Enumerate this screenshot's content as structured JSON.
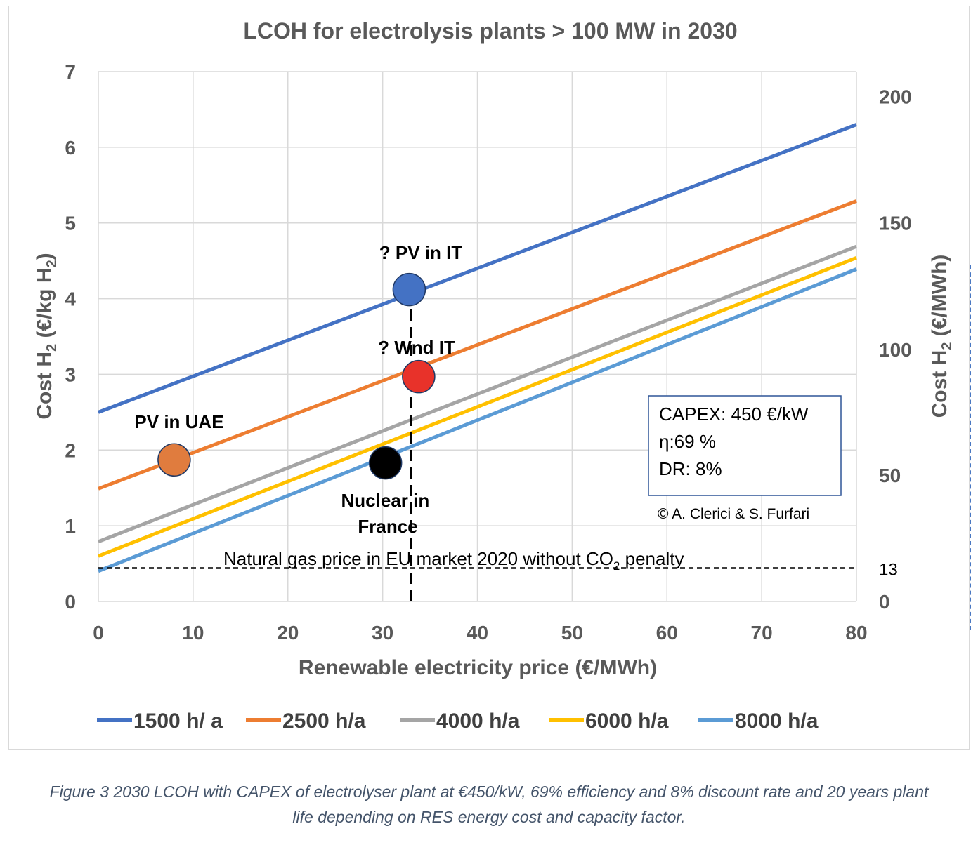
{
  "chart_data": {
    "type": "line",
    "title": "LCOH for electrolysis plants > 100 MW in 2030",
    "xlabel": "Renewable electricity price (€/MWh)",
    "ylabel_main": "Cost H",
    "ylabel_sub": "2",
    "ylabel_mid": " (€/kg H",
    "ylabel_sub2": "2",
    "ylabel_end": ")",
    "y2label_main": "Cost H",
    "y2label_sub": "2",
    "y2label_end": " (€/MWh)",
    "xlim": [
      0,
      80
    ],
    "ylim": [
      0,
      7
    ],
    "x_ticks": [
      0,
      10,
      20,
      30,
      40,
      50,
      60,
      70,
      80
    ],
    "y_ticks": [
      0,
      1,
      2,
      3,
      4,
      5,
      6,
      7
    ],
    "y2_ticks": [
      {
        "label": "0",
        "value_kg": 0
      },
      {
        "label": "13",
        "value_kg": 0.44
      },
      {
        "label": "50",
        "value_kg": 1.67
      },
      {
        "label": "100",
        "value_kg": 3.33
      },
      {
        "label": "150",
        "value_kg": 5.0
      },
      {
        "label": "200",
        "value_kg": 6.67
      }
    ],
    "series": [
      {
        "name": "1500 h/ a",
        "color": "#4472c4",
        "x": [
          0,
          80
        ],
        "y": [
          2.5,
          6.3
        ]
      },
      {
        "name": "2500 h/a",
        "color": "#ed7d31",
        "x": [
          0,
          80
        ],
        "y": [
          1.49,
          5.29
        ]
      },
      {
        "name": "4000 h/a",
        "color": "#a5a5a5",
        "x": [
          0,
          80
        ],
        "y": [
          0.79,
          4.69
        ]
      },
      {
        "name": "6000 h/a",
        "color": "#ffc000",
        "x": [
          0,
          80
        ],
        "y": [
          0.6,
          4.54
        ]
      },
      {
        "name": "8000 h/a",
        "color": "#5b9bd5",
        "x": [
          0,
          80
        ],
        "y": [
          0.4,
          4.39
        ]
      }
    ],
    "points": [
      {
        "name": "? PV in IT",
        "x": 32.8,
        "y": 4.12,
        "color": "#4472c4"
      },
      {
        "name": "? Wnd IT",
        "x": 33.8,
        "y": 2.97,
        "color": "#e8322a"
      },
      {
        "name": "PV in UAE",
        "x": 8.0,
        "y": 1.87,
        "color": "#e07c3e"
      },
      {
        "name": "Nuclear in France",
        "x": 30.3,
        "y": 1.83,
        "color": "#000000"
      }
    ],
    "reference_line": {
      "label_main": "Natural gas price in EU market 2020 without  CO",
      "label_sub": "2",
      "label_end": " penalty",
      "y": 0.44
    },
    "vertical_line": {
      "x": 33
    },
    "info_box": [
      "CAPEX: 450 €/kW",
      "η:69 %",
      "DR: 8%"
    ],
    "copyright": "© A. Clerici & S. Furfari"
  },
  "caption": {
    "line1": "Figure 3 2030 LCOH with CAPEX of electrolyser plant at €450/kW, 69% efficiency and 8% discount rate and 20 years plant",
    "line2": "life depending on RES energy cost and capacity factor."
  }
}
